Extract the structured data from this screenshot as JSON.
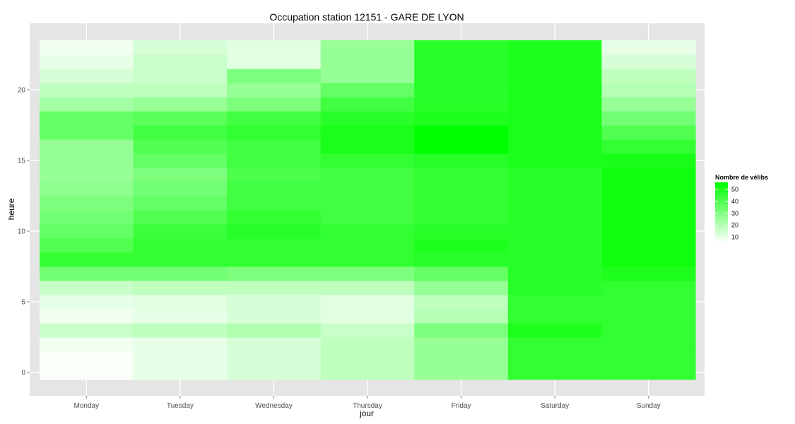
{
  "chart_data": {
    "type": "heatmap",
    "title": "Occupation station 12151 - GARE DE LYON",
    "xlabel": "jour",
    "ylabel": "heure",
    "x": [
      "Monday",
      "Tuesday",
      "Wednesday",
      "Thursday",
      "Friday",
      "Saturday",
      "Sunday"
    ],
    "y": [
      0,
      1,
      2,
      3,
      4,
      5,
      6,
      7,
      8,
      9,
      10,
      11,
      12,
      13,
      14,
      15,
      16,
      17,
      18,
      19,
      20,
      21,
      22,
      23
    ],
    "y_ticks": [
      0,
      5,
      10,
      15,
      20
    ],
    "y_tick_labels": [
      "0",
      "5",
      "10",
      "15",
      "20"
    ],
    "ylim": [
      -0.5,
      23.5
    ],
    "grid": true,
    "legend": {
      "title": "Nombre de vélibs",
      "placement": "right",
      "ticks": [
        10,
        20,
        30,
        40,
        50
      ],
      "labels": [
        "10",
        "20",
        "30",
        "40",
        "50"
      ],
      "min": 5,
      "max": 56
    },
    "color_low": "#ffffff",
    "color_high": "#00ff00",
    "values": [
      [
        6,
        10,
        13,
        18,
        26,
        46,
        46
      ],
      [
        6,
        10,
        13,
        18,
        26,
        46,
        46
      ],
      [
        8,
        10,
        13,
        18,
        26,
        46,
        46
      ],
      [
        16,
        18,
        21,
        16,
        31,
        50,
        46
      ],
      [
        8,
        10,
        13,
        11,
        20,
        46,
        46
      ],
      [
        10,
        11,
        13,
        11,
        18,
        46,
        46
      ],
      [
        16,
        18,
        18,
        18,
        26,
        48,
        46
      ],
      [
        33,
        33,
        31,
        31,
        36,
        48,
        50
      ],
      [
        46,
        46,
        46,
        46,
        48,
        48,
        53
      ],
      [
        40,
        46,
        46,
        46,
        50,
        48,
        53
      ],
      [
        36,
        44,
        48,
        46,
        48,
        48,
        53
      ],
      [
        33,
        40,
        46,
        43,
        46,
        48,
        53
      ],
      [
        31,
        36,
        43,
        43,
        46,
        48,
        53
      ],
      [
        28,
        33,
        43,
        43,
        46,
        48,
        53
      ],
      [
        26,
        31,
        41,
        43,
        46,
        48,
        53
      ],
      [
        26,
        36,
        43,
        46,
        48,
        50,
        51
      ],
      [
        26,
        40,
        43,
        51,
        56,
        51,
        46
      ],
      [
        36,
        43,
        46,
        51,
        56,
        51,
        40
      ],
      [
        36,
        38,
        43,
        48,
        50,
        51,
        33
      ],
      [
        23,
        26,
        31,
        43,
        48,
        51,
        26
      ],
      [
        18,
        18,
        26,
        36,
        48,
        51,
        20
      ],
      [
        13,
        16,
        31,
        26,
        48,
        50,
        18
      ],
      [
        10,
        16,
        11,
        26,
        48,
        50,
        13
      ],
      [
        8,
        13,
        11,
        26,
        48,
        50,
        10
      ]
    ]
  }
}
